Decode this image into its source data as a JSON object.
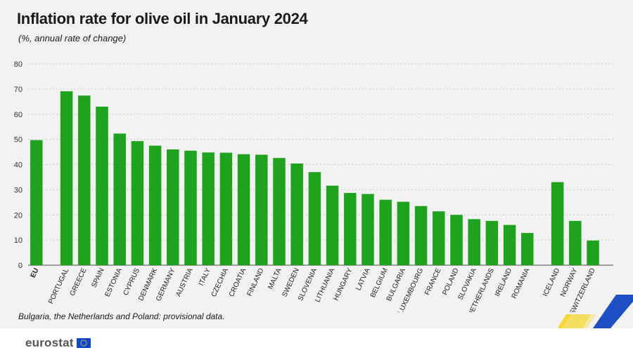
{
  "title": "Inflation rate for olive oil in January 2024",
  "subtitle": "(%, annual rate of change)",
  "note": "Bulgaria, the Netherlands and Poland: provisional data.",
  "logo": {
    "text": "eurostat"
  },
  "colors": {
    "bar": "#1fa31f",
    "grid": "#c9c9c9",
    "axis": "#4a4a4a",
    "flag": "#0e47cb",
    "star": "#ffd617"
  },
  "chart_data": {
    "type": "bar",
    "title": "Inflation rate for olive oil in January 2024",
    "subtitle": "(%, annual rate of change)",
    "xlabel": "",
    "ylabel": "",
    "ylim": [
      0,
      80
    ],
    "yticks": [
      0,
      10,
      20,
      30,
      40,
      50,
      60,
      70,
      80
    ],
    "grid": "horizontal dotted",
    "groups": [
      {
        "categories": [
          "EU"
        ],
        "values": [
          49.7
        ]
      },
      {
        "categories": [
          "PORTUGAL",
          "GREECE",
          "SPAIN",
          "ESTONIA",
          "CYPRUS",
          "DENMARK",
          "GERMANY",
          "AUSTRIA",
          "ITALY",
          "CZECHIA",
          "CROATIA",
          "FINLAND",
          "MALTA",
          "SWEDEN",
          "SLOVENIA",
          "LITHUANIA",
          "HUNGARY",
          "LATVIA",
          "BELGIUM",
          "BULGARIA",
          "LUXEMBOURG",
          "FRANCE",
          "POLAND",
          "SLOVAKIA",
          "NETHERLANDS",
          "IRELAND",
          "ROMANIA"
        ],
        "values": [
          69.1,
          67.4,
          63.0,
          52.3,
          49.3,
          47.5,
          46.0,
          45.5,
          44.8,
          44.7,
          44.1,
          43.9,
          42.6,
          40.4,
          37.0,
          31.6,
          28.7,
          28.3,
          26.0,
          25.2,
          23.5,
          21.4,
          20.0,
          18.3,
          17.6,
          16.0,
          12.8
        ]
      },
      {
        "categories": [
          "ICELAND",
          "NORWAY",
          "SWITZERLAND"
        ],
        "values": [
          33.0,
          17.6,
          9.8
        ]
      }
    ]
  }
}
